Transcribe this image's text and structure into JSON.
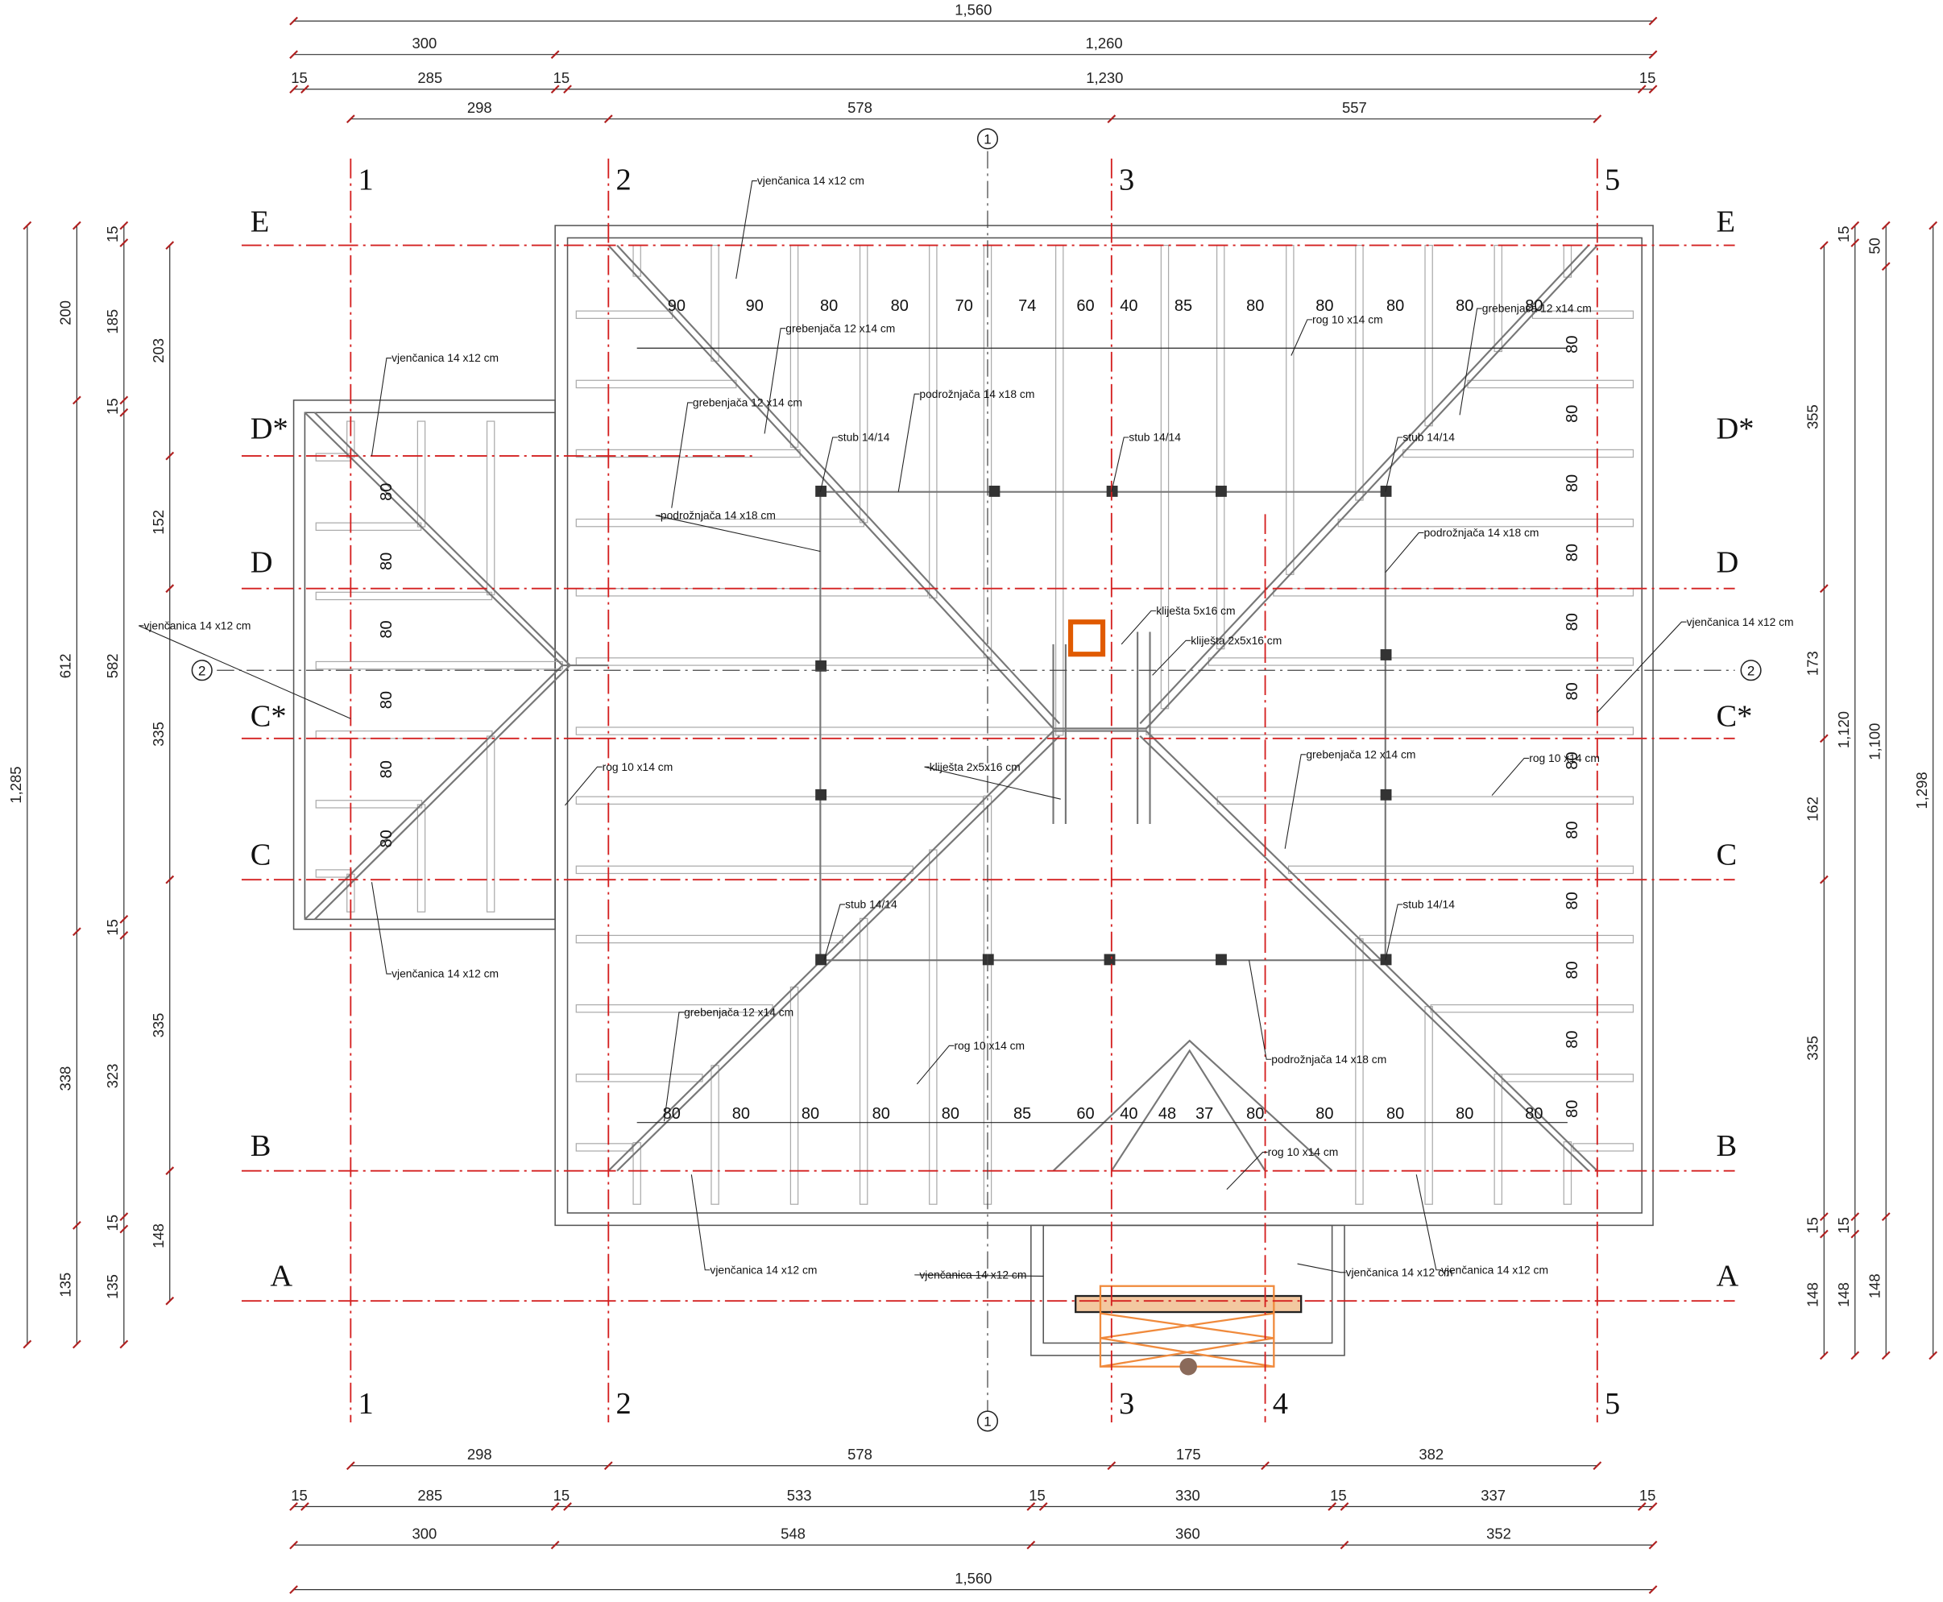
{
  "dimensions": {
    "top": [
      [
        "1,560"
      ],
      [
        300,
        "1,260"
      ],
      [
        15,
        285,
        15,
        "1,230",
        15
      ],
      [
        298,
        578,
        557
      ]
    ],
    "bottom": [
      [
        298,
        578,
        175,
        382
      ],
      [
        15,
        285,
        15,
        533,
        15,
        330,
        15,
        337,
        15
      ],
      [
        300,
        548,
        360,
        352
      ],
      [
        "1,560"
      ]
    ],
    "left": [
      [
        "1,285"
      ],
      [
        200,
        612,
        338,
        135
      ],
      [
        15,
        185,
        15,
        582,
        15,
        323,
        15,
        135
      ],
      [
        203,
        152,
        335,
        335,
        148
      ]
    ],
    "right": [
      [
        355,
        173,
        162,
        335,
        15,
        148
      ],
      [
        15,
        "1,120",
        15,
        148
      ],
      [
        50,
        "1,100",
        148
      ],
      [
        "1,298"
      ]
    ]
  },
  "axes": {
    "vertical_top": [
      "1",
      "2",
      "3",
      "5"
    ],
    "vertical_bottom": [
      "1",
      "2",
      "3",
      "4",
      "5"
    ],
    "horizontal": [
      "E",
      "D*",
      "D",
      "C*",
      "C",
      "B",
      "A"
    ],
    "section_marks": [
      "1",
      "2"
    ]
  },
  "spacing": {
    "top": [
      90,
      90,
      80,
      80,
      70,
      74,
      60,
      40,
      85,
      80,
      80,
      80,
      80,
      80
    ],
    "bottom": [
      80,
      80,
      80,
      80,
      80,
      85,
      60,
      40,
      48,
      37,
      80,
      80,
      80,
      80,
      80
    ],
    "left": [
      80,
      80,
      80,
      80,
      80,
      80
    ],
    "right": [
      80,
      80,
      80,
      80,
      80,
      80,
      80,
      80,
      80,
      80,
      80,
      80
    ]
  },
  "annotations": [
    "vjenčanica 14 x12 cm",
    "vjenčanica 14 x12 cm",
    "vjenčanica 14 x12 cm",
    "vjenčanica 14 x12 cm",
    "vjenčanica 14 x12 cm",
    "vjenčanica 14 x12 cm",
    "vjenčanica 14 x12 cm",
    "vjenčanica 14 x12 cm",
    "vjenčanica 14 x12 cm",
    "grebenjača 12 x14 cm",
    "grebenjača 12 x14 cm",
    "grebenjača 12 x14 cm",
    "grebenjača 12 x14 cm",
    "grebenjača 12 x14 cm",
    "rog 10 x14 cm",
    "rog 10 x14 cm",
    "rog 10 x14 cm",
    "rog 10 x14 cm",
    "rog 10 x14 cm",
    "podrožnjača 14 x18 cm",
    "podrožnjača 14 x18 cm",
    "podrožnjača 14 x18 cm",
    "podrožnjača 14 x18 cm",
    "stub 14/14",
    "stub 14/14",
    "stub 14/14",
    "stub 14/14",
    "stub 14/14",
    "kliješta 5x16 cm",
    "kliješta 2x5x16 cm",
    "kliješta 2x5x16 cm"
  ]
}
